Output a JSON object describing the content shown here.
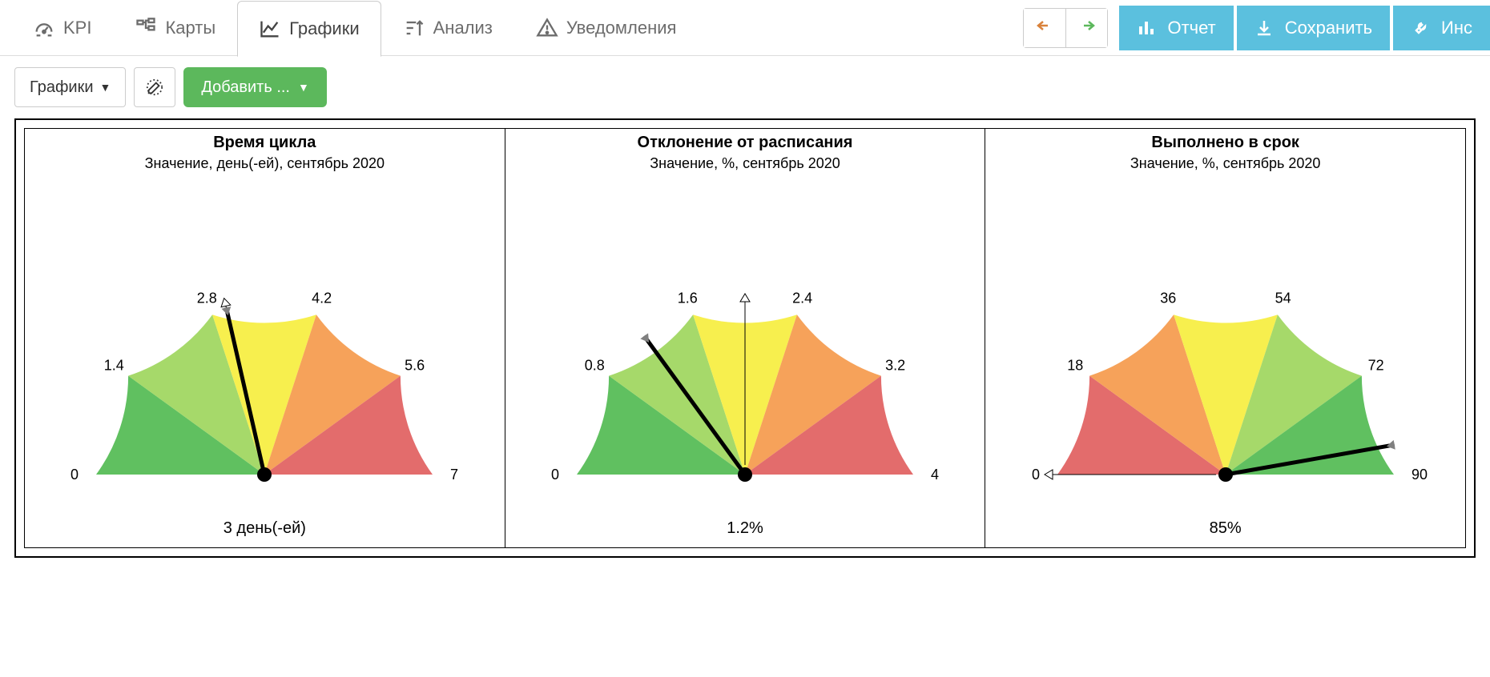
{
  "tabs": {
    "kpi": {
      "label": "KPI"
    },
    "maps": {
      "label": "Карты"
    },
    "charts": {
      "label": "Графики"
    },
    "analysis": {
      "label": "Анализ"
    },
    "alerts": {
      "label": "Уведомления"
    }
  },
  "actions": {
    "report": "Отчет",
    "save": "Сохранить",
    "tools": "Инс"
  },
  "toolbar": {
    "charts_select": "Графики",
    "add_label": "Добавить ..."
  },
  "gauge_style": {
    "segment_count": 5,
    "colors_asc": [
      "#60c060",
      "#a6d96a",
      "#f7ef4e",
      "#f6a25a",
      "#e36c6c"
    ],
    "colors_desc": [
      "#e36c6c",
      "#f6a25a",
      "#f7ef4e",
      "#a6d96a",
      "#60c060"
    ],
    "needle_color": "#000000",
    "needle_width": 5,
    "tick_font_size": 18,
    "label_color": "#000000",
    "background": "#ffffff",
    "marker_fill": "#808080"
  },
  "gauges": [
    {
      "id": "cycle_time",
      "title": "Время цикла",
      "subtitle": "Значение, день(-ей), сентябрь 2020",
      "min": 0,
      "max": 7,
      "ticks": [
        0,
        1.4,
        2.8,
        4.2,
        5.6,
        7
      ],
      "value": 3,
      "value_display": "3 день(-ей)",
      "direction": "asc",
      "second_marker": 3.0
    },
    {
      "id": "schedule_variance",
      "title": "Отклонение от расписания",
      "subtitle": "Значение, %, сентябрь 2020",
      "min": 0,
      "max": 4,
      "ticks": [
        0,
        0.8,
        1.6,
        2.4,
        3.2,
        4
      ],
      "value": 1.2,
      "value_display": "1.2%",
      "direction": "asc",
      "second_marker": 2.0
    },
    {
      "id": "on_time",
      "title": "Выполнено в срок",
      "subtitle": "Значение, %, сентябрь 2020",
      "min": 0,
      "max": 90,
      "ticks": [
        0,
        18,
        36,
        54,
        72,
        90
      ],
      "value": 85,
      "value_display": "85%",
      "direction": "desc",
      "second_marker": 0
    }
  ]
}
